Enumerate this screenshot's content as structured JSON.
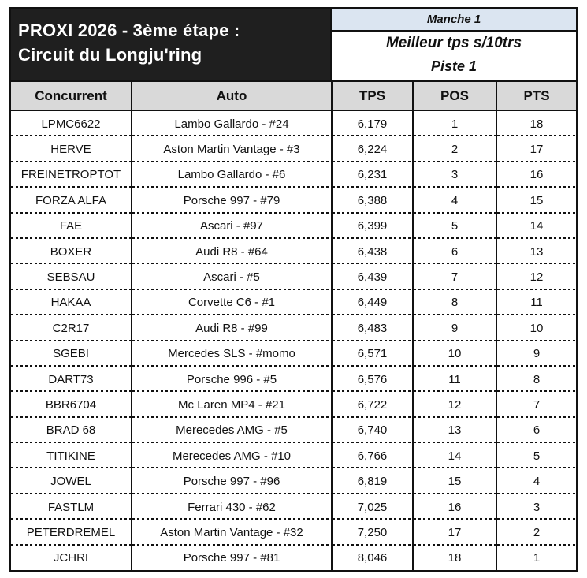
{
  "title": {
    "line1": "PROXI 2026 - 3ème étape :",
    "line2": "Circuit du Longju'ring"
  },
  "panel": {
    "manche": "Manche 1",
    "best_time": "Meilleur tps s/10trs",
    "piste": "Piste 1"
  },
  "results": {
    "columns": [
      "Concurrent",
      "Auto",
      "TPS",
      "POS",
      "PTS"
    ],
    "rows": [
      [
        "LPMC6622",
        "Lambo Gallardo - #24",
        "6,179",
        "1",
        "18"
      ],
      [
        "HERVE",
        "Aston Martin Vantage - #3",
        "6,224",
        "2",
        "17"
      ],
      [
        "FREINETROPTOT",
        "Lambo Gallardo - #6",
        "6,231",
        "3",
        "16"
      ],
      [
        "FORZA ALFA",
        "Porsche 997 - #79",
        "6,388",
        "4",
        "15"
      ],
      [
        "FAE",
        "Ascari - #97",
        "6,399",
        "5",
        "14"
      ],
      [
        "BOXER",
        "Audi R8 - #64",
        "6,438",
        "6",
        "13"
      ],
      [
        "SEBSAU",
        "Ascari - #5",
        "6,439",
        "7",
        "12"
      ],
      [
        "HAKAA",
        "Corvette C6 - #1",
        "6,449",
        "8",
        "11"
      ],
      [
        "C2R17",
        "Audi R8 - #99",
        "6,483",
        "9",
        "10"
      ],
      [
        "SGEBI",
        "Mercedes SLS - #momo",
        "6,571",
        "10",
        "9"
      ],
      [
        "DART73",
        "Porsche 996 - #5",
        "6,576",
        "11",
        "8"
      ],
      [
        "BBR6704",
        "Mc Laren MP4 - #21",
        "6,722",
        "12",
        "7"
      ],
      [
        "BRAD 68",
        "Merecedes AMG - #5",
        "6,740",
        "13",
        "6"
      ],
      [
        "TITIKINE",
        "Merecedes AMG - #10",
        "6,766",
        "14",
        "5"
      ],
      [
        "JOWEL",
        "Porsche 997 - #96",
        "6,819",
        "15",
        "4"
      ],
      [
        "FASTLM",
        "Ferrari 430 - #62",
        "7,025",
        "16",
        "3"
      ],
      [
        "PETERDREMEL",
        "Aston Martin Vantage - #32",
        "7,250",
        "17",
        "2"
      ],
      [
        "JCHRI",
        "Porsche 997 - #81",
        "8,046",
        "18",
        "1"
      ]
    ]
  },
  "colors": {
    "title_bg": "#1f1f1f",
    "manche_bg": "#dbe5f1",
    "header_bg": "#d9d9d9",
    "border": "#111111"
  }
}
